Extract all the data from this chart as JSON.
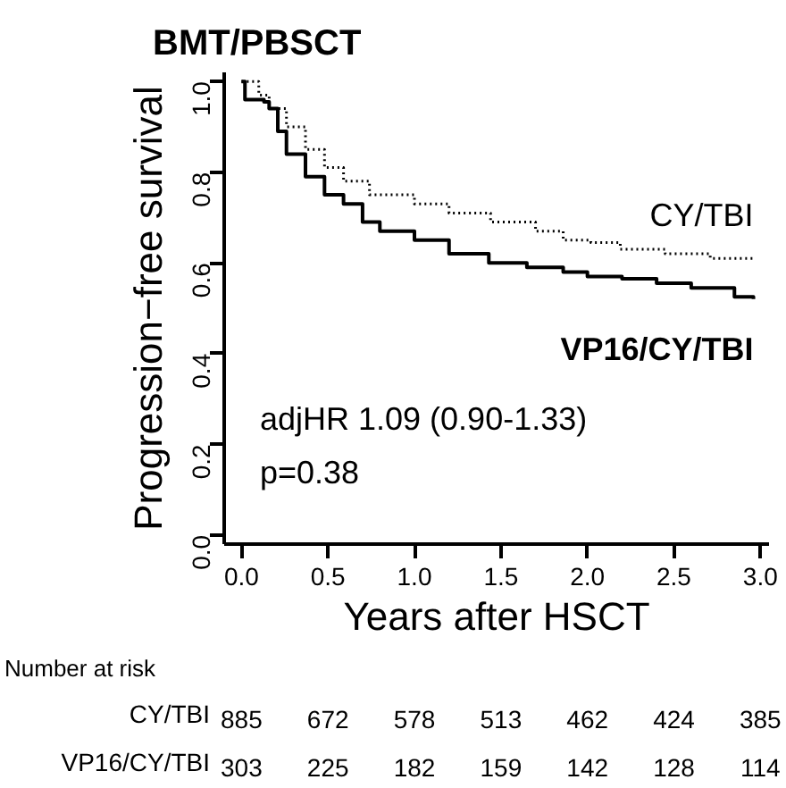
{
  "chart_data": {
    "type": "step",
    "title": "BMT/PBSCT",
    "xlabel": "Years after HSCT",
    "ylabel": "Progression−free survival",
    "xlim": [
      -0.1,
      3.05
    ],
    "ylim": [
      -0.02,
      1.02
    ],
    "xticks": [
      {
        "value": 0,
        "label": "0.0"
      },
      {
        "value": 0.5,
        "label": "0.5"
      },
      {
        "value": 1,
        "label": "1.0"
      },
      {
        "value": 1.5,
        "label": "1.5"
      },
      {
        "value": 2,
        "label": "2.0"
      },
      {
        "value": 2.5,
        "label": "2.5"
      },
      {
        "value": 3,
        "label": "3.0"
      }
    ],
    "yticks": [
      {
        "value": 0,
        "label": "0.0"
      },
      {
        "value": 0.2,
        "label": "0.2"
      },
      {
        "value": 0.4,
        "label": "0.4"
      },
      {
        "value": 0.6,
        "label": "0.6"
      },
      {
        "value": 0.8,
        "label": "0.8"
      },
      {
        "value": 1,
        "label": "1.0"
      }
    ],
    "grid": false,
    "marker": "none",
    "series": [
      {
        "name": "CY/TBI",
        "color": "#000000",
        "line_style": "dotted",
        "x": [
          0,
          0.1,
          0.16,
          0.26,
          0.37,
          0.48,
          0.59,
          0.74,
          1.0,
          1.2,
          1.44,
          1.7,
          1.86,
          2.02,
          2.19,
          2.45,
          2.71,
          2.96
        ],
        "values": [
          1.0,
          0.97,
          0.94,
          0.9,
          0.85,
          0.81,
          0.78,
          0.75,
          0.73,
          0.71,
          0.69,
          0.67,
          0.65,
          0.645,
          0.63,
          0.62,
          0.61,
          0.61
        ]
      },
      {
        "name": "VP16/CY/TBI",
        "color": "#000000",
        "line_style": "solid",
        "x": [
          0,
          0.02,
          0.13,
          0.16,
          0.21,
          0.26,
          0.37,
          0.48,
          0.59,
          0.7,
          0.8,
          1.0,
          1.2,
          1.43,
          1.65,
          1.86,
          2.0,
          2.2,
          2.4,
          2.6,
          2.85,
          2.96
        ],
        "values": [
          1.0,
          0.96,
          0.955,
          0.94,
          0.89,
          0.84,
          0.79,
          0.75,
          0.73,
          0.69,
          0.67,
          0.65,
          0.62,
          0.6,
          0.59,
          0.58,
          0.57,
          0.565,
          0.555,
          0.545,
          0.525,
          0.52
        ]
      }
    ],
    "annotations": [
      "adjHR 1.09 (0.90-1.33)",
      "p=0.38",
      "Number at risk",
      "CY/TBI",
      "885",
      "672",
      "578",
      "513",
      "462",
      "424",
      "385",
      "VP16/CY/TBI",
      "303",
      "225",
      "182",
      "159",
      "142",
      "128",
      "114"
    ]
  }
}
